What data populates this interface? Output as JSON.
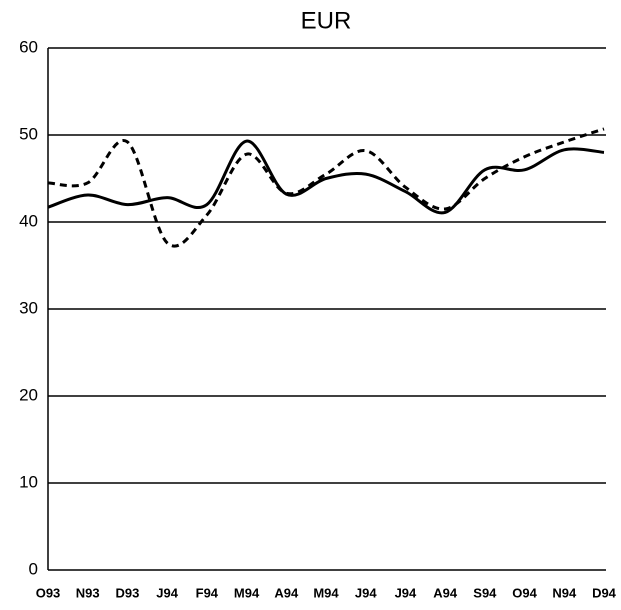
{
  "chart_data": {
    "type": "line",
    "title": "EUR",
    "categories": [
      "O93",
      "N93",
      "D93",
      "J94",
      "F94",
      "M94",
      "A94",
      "M94",
      "J94",
      "J94",
      "A94",
      "S94",
      "O94",
      "N94",
      "D94"
    ],
    "series": [
      {
        "color": "#000000",
        "dash": false,
        "values": [
          41.7,
          43.1,
          42.0,
          42.8,
          42.0,
          49.3,
          43.2,
          45.0,
          45.5,
          43.5,
          41.1,
          46.0,
          46.0,
          48.3,
          48.0
        ]
      },
      {
        "color": "#000000",
        "dash": true,
        "values": [
          44.5,
          44.5,
          49.2,
          37.6,
          40.8,
          47.8,
          43.3,
          45.5,
          48.2,
          44.0,
          41.5,
          45.0,
          47.5,
          49.2,
          50.7
        ]
      }
    ],
    "ylim": [
      0,
      60
    ],
    "yticks": [
      0,
      10,
      20,
      30,
      40,
      50,
      60
    ],
    "grid": true
  }
}
